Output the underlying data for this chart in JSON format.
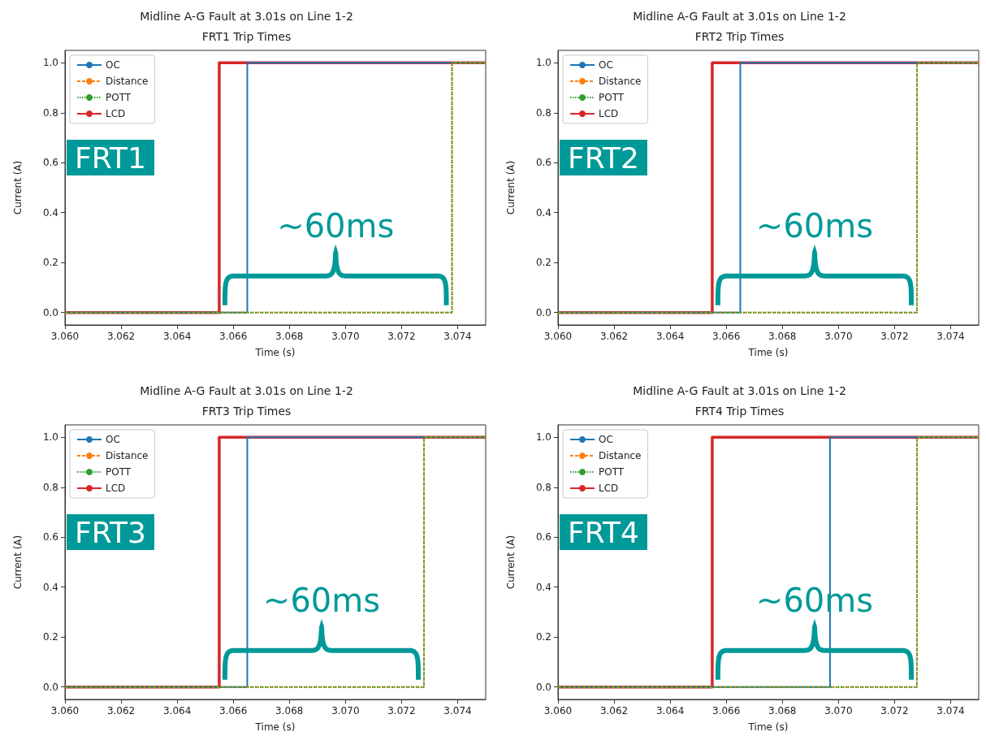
{
  "chart_data": [
    {
      "type": "step",
      "title": "Midline A-G Fault at 3.01s on Line 1-2",
      "subtitle": "FRT1 Trip Times",
      "xlabel": "Time (s)",
      "ylabel": "Current (A)",
      "xlim": [
        3.06,
        3.075
      ],
      "xticks": [
        {
          "value": 3.06,
          "label": "3.060"
        },
        {
          "value": 3.062,
          "label": "3.062"
        },
        {
          "value": 3.064,
          "label": "3.064"
        },
        {
          "value": 3.066,
          "label": "3.066"
        },
        {
          "value": 3.068,
          "label": "3.068"
        },
        {
          "value": 3.07,
          "label": "3.070"
        },
        {
          "value": 3.072,
          "label": "3.072"
        },
        {
          "value": 3.074,
          "label": "3.074"
        }
      ],
      "ylim": [
        -0.05,
        1.05
      ],
      "yticks": [
        {
          "value": 0,
          "label": "0.0"
        },
        {
          "value": 0.2,
          "label": "0.2"
        },
        {
          "value": 0.4,
          "label": "0.4"
        },
        {
          "value": 0.6,
          "label": "0.6"
        },
        {
          "value": 0.8,
          "label": "0.8"
        },
        {
          "value": 1,
          "label": "1.0"
        }
      ],
      "marker": "none",
      "grid": false,
      "legend": "top left",
      "annotations": [
        "FRT1",
        "~60ms"
      ],
      "series": [
        {
          "name": "OC",
          "color": "#1f77b4",
          "line_style": "solid",
          "x": [
            3.06,
            3.0665,
            3.075
          ],
          "values": [
            0,
            1,
            1
          ]
        },
        {
          "name": "Distance",
          "color": "#ff7f0e",
          "line_style": "dashed",
          "x": [
            3.06,
            3.0738,
            3.075
          ],
          "values": [
            0,
            1,
            1
          ]
        },
        {
          "name": "POTT",
          "color": "#2ca02c",
          "line_style": "dotted",
          "x": [
            3.06,
            3.0738,
            3.075
          ],
          "values": [
            0,
            1,
            1
          ]
        },
        {
          "name": "LCD",
          "color": "#d62728",
          "line_style": "solid",
          "x": [
            3.06,
            3.0655,
            3.075
          ],
          "values": [
            0,
            1,
            1
          ]
        }
      ]
    },
    {
      "type": "step",
      "title": "Midline A-G Fault at 3.01s on Line 1-2",
      "subtitle": "FRT2 Trip Times",
      "xlabel": "Time (s)",
      "ylabel": "Current (A)",
      "xlim": [
        3.06,
        3.075
      ],
      "xticks": [
        {
          "value": 3.06,
          "label": "3.060"
        },
        {
          "value": 3.062,
          "label": "3.062"
        },
        {
          "value": 3.064,
          "label": "3.064"
        },
        {
          "value": 3.066,
          "label": "3.066"
        },
        {
          "value": 3.068,
          "label": "3.068"
        },
        {
          "value": 3.07,
          "label": "3.070"
        },
        {
          "value": 3.072,
          "label": "3.072"
        },
        {
          "value": 3.074,
          "label": "3.074"
        }
      ],
      "ylim": [
        -0.05,
        1.05
      ],
      "yticks": [
        {
          "value": 0,
          "label": "0.0"
        },
        {
          "value": 0.2,
          "label": "0.2"
        },
        {
          "value": 0.4,
          "label": "0.4"
        },
        {
          "value": 0.6,
          "label": "0.6"
        },
        {
          "value": 0.8,
          "label": "0.8"
        },
        {
          "value": 1,
          "label": "1.0"
        }
      ],
      "marker": "none",
      "grid": false,
      "legend": "top left",
      "annotations": [
        "FRT2",
        "~60ms"
      ],
      "series": [
        {
          "name": "OC",
          "color": "#1f77b4",
          "line_style": "solid",
          "x": [
            3.06,
            3.0665,
            3.075
          ],
          "values": [
            0,
            1,
            1
          ]
        },
        {
          "name": "Distance",
          "color": "#ff7f0e",
          "line_style": "dashed",
          "x": [
            3.06,
            3.0728,
            3.075
          ],
          "values": [
            0,
            1,
            1
          ]
        },
        {
          "name": "POTT",
          "color": "#2ca02c",
          "line_style": "dotted",
          "x": [
            3.06,
            3.0728,
            3.075
          ],
          "values": [
            0,
            1,
            1
          ]
        },
        {
          "name": "LCD",
          "color": "#d62728",
          "line_style": "solid",
          "x": [
            3.06,
            3.0655,
            3.075
          ],
          "values": [
            0,
            1,
            1
          ]
        }
      ]
    },
    {
      "type": "step",
      "title": "Midline A-G Fault at 3.01s on Line 1-2",
      "subtitle": "FRT3 Trip Times",
      "xlabel": "Time (s)",
      "ylabel": "Current (A)",
      "xlim": [
        3.06,
        3.075
      ],
      "xticks": [
        {
          "value": 3.06,
          "label": "3.060"
        },
        {
          "value": 3.062,
          "label": "3.062"
        },
        {
          "value": 3.064,
          "label": "3.064"
        },
        {
          "value": 3.066,
          "label": "3.066"
        },
        {
          "value": 3.068,
          "label": "3.068"
        },
        {
          "value": 3.07,
          "label": "3.070"
        },
        {
          "value": 3.072,
          "label": "3.072"
        },
        {
          "value": 3.074,
          "label": "3.074"
        }
      ],
      "ylim": [
        -0.05,
        1.05
      ],
      "yticks": [
        {
          "value": 0,
          "label": "0.0"
        },
        {
          "value": 0.2,
          "label": "0.2"
        },
        {
          "value": 0.4,
          "label": "0.4"
        },
        {
          "value": 0.6,
          "label": "0.6"
        },
        {
          "value": 0.8,
          "label": "0.8"
        },
        {
          "value": 1,
          "label": "1.0"
        }
      ],
      "marker": "none",
      "grid": false,
      "legend": "top left",
      "annotations": [
        "FRT3",
        "~60ms"
      ],
      "series": [
        {
          "name": "OC",
          "color": "#1f77b4",
          "line_style": "solid",
          "x": [
            3.06,
            3.0665,
            3.075
          ],
          "values": [
            0,
            1,
            1
          ]
        },
        {
          "name": "Distance",
          "color": "#ff7f0e",
          "line_style": "dashed",
          "x": [
            3.06,
            3.0728,
            3.075
          ],
          "values": [
            0,
            1,
            1
          ]
        },
        {
          "name": "POTT",
          "color": "#2ca02c",
          "line_style": "dotted",
          "x": [
            3.06,
            3.0728,
            3.075
          ],
          "values": [
            0,
            1,
            1
          ]
        },
        {
          "name": "LCD",
          "color": "#d62728",
          "line_style": "solid",
          "x": [
            3.06,
            3.0655,
            3.075
          ],
          "values": [
            0,
            1,
            1
          ]
        }
      ]
    },
    {
      "type": "step",
      "title": "Midline A-G Fault at 3.01s on Line 1-2",
      "subtitle": "FRT4 Trip Times",
      "xlabel": "Time (s)",
      "ylabel": "Current (A)",
      "xlim": [
        3.06,
        3.075
      ],
      "xticks": [
        {
          "value": 3.06,
          "label": "3.060"
        },
        {
          "value": 3.062,
          "label": "3.062"
        },
        {
          "value": 3.064,
          "label": "3.064"
        },
        {
          "value": 3.066,
          "label": "3.066"
        },
        {
          "value": 3.068,
          "label": "3.068"
        },
        {
          "value": 3.07,
          "label": "3.070"
        },
        {
          "value": 3.072,
          "label": "3.072"
        },
        {
          "value": 3.074,
          "label": "3.074"
        }
      ],
      "ylim": [
        -0.05,
        1.05
      ],
      "yticks": [
        {
          "value": 0,
          "label": "0.0"
        },
        {
          "value": 0.2,
          "label": "0.2"
        },
        {
          "value": 0.4,
          "label": "0.4"
        },
        {
          "value": 0.6,
          "label": "0.6"
        },
        {
          "value": 0.8,
          "label": "0.8"
        },
        {
          "value": 1,
          "label": "1.0"
        }
      ],
      "marker": "none",
      "grid": false,
      "legend": "top left",
      "annotations": [
        "FRT4",
        "~60ms"
      ],
      "series": [
        {
          "name": "OC",
          "color": "#1f77b4",
          "line_style": "solid",
          "x": [
            3.06,
            3.0697,
            3.075
          ],
          "values": [
            0,
            1,
            1
          ]
        },
        {
          "name": "Distance",
          "color": "#ff7f0e",
          "line_style": "dashed",
          "x": [
            3.06,
            3.0728,
            3.075
          ],
          "values": [
            0,
            1,
            1
          ]
        },
        {
          "name": "POTT",
          "color": "#2ca02c",
          "line_style": "dotted",
          "x": [
            3.06,
            3.0728,
            3.075
          ],
          "values": [
            0,
            1,
            1
          ]
        },
        {
          "name": "LCD",
          "color": "#d62728",
          "line_style": "solid",
          "x": [
            3.06,
            3.0655,
            3.075
          ],
          "values": [
            0,
            1,
            1
          ]
        }
      ]
    }
  ]
}
